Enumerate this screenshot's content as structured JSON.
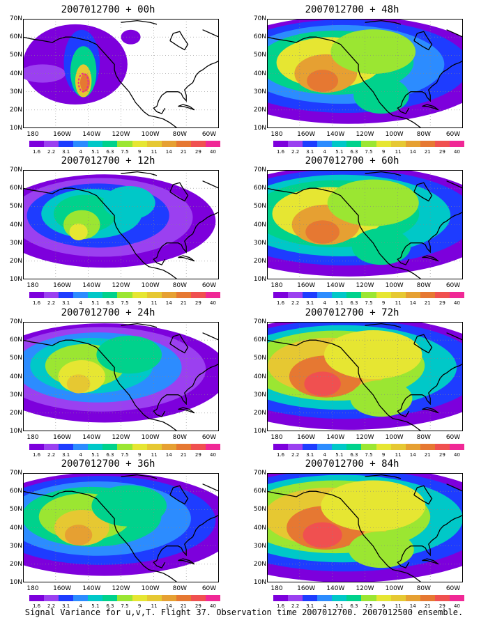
{
  "caption": "Signal Variance for u,v,T. Flight 37. Observation time 2007012700. 2007012500 ensemble.",
  "lat_labels": [
    "70N",
    "60N",
    "50N",
    "40N",
    "30N",
    "20N",
    "10N"
  ],
  "lon_labels": [
    "180",
    "160W",
    "140W",
    "120W",
    "100W",
    "80W",
    "60W"
  ],
  "colorbar": {
    "levels": [
      "1.6",
      "2.2",
      "3.1",
      "4",
      "5.1",
      "6.3",
      "7.5",
      "9",
      "11",
      "14",
      "21",
      "29",
      "40"
    ],
    "colors": [
      "#7d00dc",
      "#9b40f0",
      "#1e3cff",
      "#2c8cff",
      "#00c8c8",
      "#00d28c",
      "#9be632",
      "#e6e632",
      "#e6c832",
      "#e6a032",
      "#e67832",
      "#f05050",
      "#f02896"
    ]
  },
  "panels": [
    {
      "title": "2007012700 + 00h",
      "intensity": 0.0
    },
    {
      "title": "2007012700 + 12h",
      "intensity": 0.2
    },
    {
      "title": "2007012700 + 24h",
      "intensity": 0.4
    },
    {
      "title": "2007012700 + 36h",
      "intensity": 0.55
    },
    {
      "title": "2007012700 + 48h",
      "intensity": 0.7
    },
    {
      "title": "2007012700 + 60h",
      "intensity": 0.8
    },
    {
      "title": "2007012700 + 72h",
      "intensity": 0.9
    },
    {
      "title": "2007012700 + 84h",
      "intensity": 1.0
    }
  ]
}
